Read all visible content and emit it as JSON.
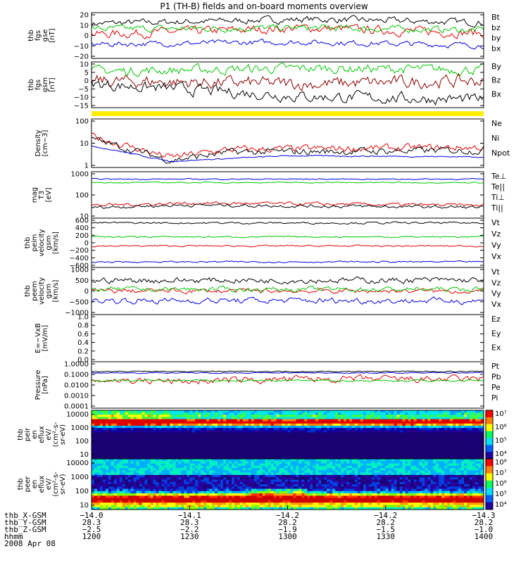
{
  "chart_data": {
    "type": "line",
    "title": "P1 (TH-B) fields and on-board moments overview",
    "panels": [
      {
        "id": "fgs-gse",
        "ylabel": [
          "thb",
          "fgs",
          "gse",
          "[nT]"
        ],
        "yticks": [
          "20",
          "10",
          "0",
          "−10",
          "−20"
        ],
        "ylim": [
          -20,
          22
        ],
        "series": [
          {
            "name": "Bt",
            "color": "#000000",
            "base": 13,
            "noise": 3,
            "trend": [
              [
                0,
                -1
              ],
              [
                0.55,
                3
              ],
              [
                1,
                0
              ]
            ]
          },
          {
            "name": "bz",
            "color": "#e00000",
            "base": 2,
            "noise": 4,
            "trend": [
              [
                0,
                0
              ],
              [
                0.55,
                6
              ],
              [
                1,
                1
              ]
            ]
          },
          {
            "name": "by",
            "color": "#00c800",
            "base": 8,
            "noise": 3,
            "trend": [
              [
                0,
                -1
              ],
              [
                0.55,
                0
              ],
              [
                1,
                -2
              ]
            ]
          },
          {
            "name": "bx",
            "color": "#0000e0",
            "base": -7,
            "noise": 2.5,
            "trend": [
              [
                0,
                0
              ],
              [
                0.55,
                2
              ],
              [
                1,
                -1
              ]
            ]
          }
        ]
      },
      {
        "id": "fgs-gsm",
        "ylabel": [
          "thb",
          "fgs",
          "gsm",
          "[nT]"
        ],
        "yticks": [
          "10",
          "5",
          "0",
          "−5",
          "−10",
          "−15"
        ],
        "ylim": [
          -17,
          12
        ],
        "series": [
          {
            "name": "By",
            "color": "#00c800",
            "base": 6,
            "noise": 3,
            "trend": [
              [
                0,
                0
              ],
              [
                0.55,
                2
              ],
              [
                1,
                1
              ]
            ]
          },
          {
            "name": "Bz",
            "color": "#8b0000",
            "base": 0,
            "noise": 4,
            "trend": [
              [
                0,
                0
              ],
              [
                0.55,
                -2
              ],
              [
                1,
                0
              ]
            ]
          },
          {
            "name": "Bx",
            "color": "#000000",
            "base": -3,
            "noise": 3.5,
            "trend": [
              [
                0,
                1
              ],
              [
                0.55,
                -7
              ],
              [
                1,
                -9
              ]
            ]
          }
        ]
      },
      {
        "id": "density",
        "ylabel": [
          "Density",
          "[cm−3]"
        ],
        "log": true,
        "yticks": [
          "100",
          "10",
          "1"
        ],
        "ylim": [
          1,
          150
        ],
        "series": [
          {
            "name": "Ne",
            "color": "#e00000",
            "base": 8,
            "noise": 0.18,
            "trend": [
              [
                0,
                1
              ],
              [
                0.2,
                -0.9
              ],
              [
                0.35,
                -0.2
              ],
              [
                1,
                0
              ]
            ]
          },
          {
            "name": "Ni",
            "color": "#000000",
            "base": 6,
            "noise": 0.18,
            "trend": [
              [
                0,
                1
              ],
              [
                0.2,
                -0.9
              ],
              [
                0.35,
                -0.2
              ],
              [
                1,
                0
              ]
            ]
          },
          {
            "name": "Npot",
            "color": "#0000e0",
            "base": 3,
            "noise": 0.03,
            "trend": [
              [
                0,
                1
              ],
              [
                0.2,
                -0.4
              ],
              [
                0.5,
                0.1
              ],
              [
                1,
                0
              ]
            ]
          }
        ]
      },
      {
        "id": "temperature",
        "ylabel": [
          "mag",
          "T3",
          "[eV]"
        ],
        "log": true,
        "yticks": [
          "1000",
          "100",
          "10"
        ],
        "ylim": [
          6,
          6000
        ],
        "series": [
          {
            "name": "Te⊥",
            "color": "#e00000",
            "base": 40,
            "noise": 0.12,
            "trend": [
              [
                0,
                0
              ],
              [
                0.25,
                0.3
              ],
              [
                1,
                0
              ]
            ]
          },
          {
            "name": "Te||",
            "color": "#000000",
            "base": 30,
            "noise": 0.12,
            "trend": [
              [
                0,
                0
              ],
              [
                0.25,
                0.3
              ],
              [
                1,
                0
              ]
            ]
          },
          {
            "name": "Ti⊥",
            "color": "#0000e0",
            "base": 2000,
            "noise": 0.04,
            "trend": [
              [
                0,
                0
              ],
              [
                1,
                0
              ]
            ]
          },
          {
            "name": "Ti||",
            "color": "#00c800",
            "base": 1200,
            "noise": 0.04,
            "trend": [
              [
                0,
                0
              ],
              [
                1,
                0
              ]
            ]
          }
        ]
      },
      {
        "id": "peim-velocity",
        "ylabel": [
          "thb",
          "peim",
          "velocity",
          "gsm",
          "[km/s]"
        ],
        "yticks": [
          "600",
          "400",
          "200",
          "0",
          "−200",
          "−400",
          "−600"
        ],
        "ylim": [
          -620,
          620
        ],
        "series": [
          {
            "name": "Vt",
            "color": "#000000",
            "base": 500,
            "noise": 25,
            "trend": [
              [
                0,
                0
              ],
              [
                1,
                0
              ]
            ]
          },
          {
            "name": "Vz",
            "color": "#e00000",
            "base": -80,
            "noise": 20,
            "trend": [
              [
                0,
                0
              ],
              [
                1,
                0
              ]
            ]
          },
          {
            "name": "Vy",
            "color": "#00c800",
            "base": 150,
            "noise": 20,
            "trend": [
              [
                0,
                0
              ],
              [
                1,
                0
              ]
            ]
          },
          {
            "name": "Vx",
            "color": "#0000e0",
            "base": -480,
            "noise": 20,
            "trend": [
              [
                0,
                0
              ],
              [
                1,
                0
              ]
            ]
          }
        ]
      },
      {
        "id": "peem-velocity",
        "ylabel": [
          "thb",
          "peem",
          "velocity",
          "gsm",
          "[km/s]"
        ],
        "yticks": [
          "1000",
          "500",
          "0",
          "−500",
          "−1000"
        ],
        "ylim": [
          -1100,
          1100
        ],
        "series": [
          {
            "name": "Vt",
            "color": "#000000",
            "base": 500,
            "noise": 140,
            "trend": [
              [
                0,
                0
              ],
              [
                1,
                0
              ]
            ]
          },
          {
            "name": "Vz",
            "color": "#e00000",
            "base": 0,
            "noise": 110,
            "trend": [
              [
                0,
                0
              ],
              [
                1,
                0
              ]
            ]
          },
          {
            "name": "Vy",
            "color": "#00c800",
            "base": 80,
            "noise": 110,
            "trend": [
              [
                0,
                0
              ],
              [
                1,
                0
              ]
            ]
          },
          {
            "name": "Vx",
            "color": "#0000e0",
            "base": -450,
            "noise": 140,
            "trend": [
              [
                0,
                0
              ],
              [
                1,
                0
              ]
            ]
          }
        ]
      },
      {
        "id": "e-field",
        "ylabel": [
          "E=−VxB",
          "[mV/m]"
        ],
        "yticks": [
          "1.0",
          "0.8",
          "0.6",
          "0.4",
          "0.2",
          "0.0"
        ],
        "ylim": [
          0,
          1
        ],
        "series": [
          {
            "name": "Ez",
            "color": "#e00000",
            "values": []
          },
          {
            "name": "Ey",
            "color": "#00c800",
            "values": []
          },
          {
            "name": "Ex",
            "color": "#0000e0",
            "values": []
          }
        ]
      },
      {
        "id": "pressure",
        "ylabel": [
          "Pressure",
          "[nPa]"
        ],
        "log": true,
        "yticks": [
          "1.0000",
          "0.1000",
          "0.0100",
          "0.0010",
          "0.0001"
        ],
        "ylim": [
          0.0001,
          1.5
        ],
        "series": [
          {
            "name": "Pt",
            "color": "#000000",
            "base": 0.2,
            "noise": 0.05,
            "trend": [
              [
                0,
                0
              ],
              [
                1,
                0
              ]
            ]
          },
          {
            "name": "Pb",
            "color": "#e00000",
            "base": 0.04,
            "noise": 0.35,
            "trend": [
              [
                0,
                -0.1
              ],
              [
                0.25,
                -0.4
              ],
              [
                0.5,
                0
              ],
              [
                1,
                0
              ]
            ]
          },
          {
            "name": "Pe",
            "color": "#00c800",
            "base": 0.03,
            "noise": 0.1,
            "trend": [
              [
                0,
                0
              ],
              [
                1,
                0
              ]
            ]
          },
          {
            "name": "Pi",
            "color": "#0000e0",
            "base": 0.15,
            "noise": 0.05,
            "trend": [
              [
                0,
                0
              ],
              [
                1,
                0
              ]
            ]
          }
        ]
      },
      {
        "id": "peir-eflux",
        "type": "heatmap",
        "ylabel": [
          "thb",
          "peir",
          "en",
          "eflux",
          "eV/",
          "(cm²-s-",
          "sr-eV)"
        ],
        "yticks": [
          "10000",
          "1000",
          "100",
          "10"
        ],
        "colorbar": [
          "10⁷",
          "10⁶",
          "10⁵",
          "10⁴"
        ]
      },
      {
        "id": "peer-eflux",
        "type": "heatmap",
        "ylabel": [
          "thb",
          "peer",
          "en",
          "eflux",
          "eV/",
          "(cm²-s-",
          "sr-eV)"
        ],
        "yticks": [
          "10000",
          "1000",
          "100",
          "10"
        ],
        "colorbar": [
          "10⁸",
          "10⁷",
          "10⁶",
          "10⁵",
          "10⁴"
        ]
      }
    ],
    "x_axis": {
      "rows": [
        {
          "label": "thb_X-GSM",
          "values": [
            "−14.0",
            "−14.1",
            "−14.2",
            "−14.2",
            "−14.3"
          ]
        },
        {
          "label": "thb_Y-GSM",
          "values": [
            "28.3",
            "28.3",
            "28.2",
            "28.2",
            "28.2"
          ]
        },
        {
          "label": "thb_Z-GSM",
          "values": [
            "−2.5",
            "−2.2",
            "−1.9",
            "−1.5",
            "−1.0"
          ]
        },
        {
          "label": "hhmm",
          "values": [
            "1200",
            "1230",
            "1300",
            "1330",
            "1400"
          ]
        }
      ],
      "date": "2008 Apr 08"
    }
  }
}
